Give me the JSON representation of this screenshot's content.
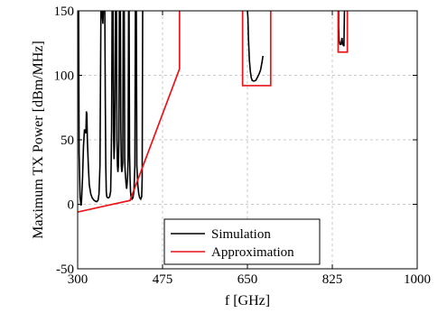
{
  "chart_data": {
    "type": "line",
    "xlabel": "f [GHz]",
    "ylabel": "Maximum TX Power [dBm/MHz]",
    "xlim": [
      300,
      1000
    ],
    "ylim": [
      -50,
      150
    ],
    "x_ticks": [
      300,
      475,
      650,
      825,
      1000
    ],
    "y_ticks": [
      -50,
      0,
      50,
      100,
      150
    ],
    "grid": "dashed",
    "legend_position": "bottom-center",
    "series": [
      {
        "name": "Simulation",
        "color": "#000000",
        "segments": [
          [
            [
              300,
              150
            ],
            [
              302,
              150
            ],
            [
              302,
              150
            ],
            [
              303,
              40
            ],
            [
              305,
              5
            ],
            [
              307,
              -1
            ],
            [
              308,
              3
            ],
            [
              310,
              20
            ],
            [
              312,
              45
            ],
            [
              314,
              58
            ],
            [
              317,
              55
            ],
            [
              318,
              72
            ],
            [
              319,
              70
            ],
            [
              320,
              50
            ],
            [
              322,
              30
            ],
            [
              324,
              15
            ],
            [
              327,
              8
            ],
            [
              330,
              5
            ],
            [
              334,
              3
            ],
            [
              339,
              2
            ],
            [
              342,
              3
            ],
            [
              344,
              8
            ],
            [
              346,
              30
            ],
            [
              348,
              150
            ],
            [
              350,
              150
            ],
            [
              352,
              140
            ],
            [
              353,
              150
            ],
            [
              356,
              150
            ],
            [
              357,
              80
            ],
            [
              358,
              30
            ],
            [
              359,
              10
            ],
            [
              360,
              6
            ],
            [
              362,
              5
            ],
            [
              364,
              5
            ],
            [
              366,
              6
            ],
            [
              368,
              10
            ],
            [
              369,
              30
            ],
            [
              370,
              60
            ],
            [
              371,
              150
            ],
            [
              373,
              150
            ],
            [
              374,
              55
            ],
            [
              375,
              35
            ],
            [
              376,
              45
            ],
            [
              377,
              80
            ],
            [
              378,
              150
            ],
            [
              380,
              150
            ],
            [
              381,
              50
            ],
            [
              382,
              30
            ],
            [
              383,
              25
            ],
            [
              384,
              30
            ],
            [
              385,
              50
            ],
            [
              386,
              150
            ],
            [
              388,
              150
            ],
            [
              389,
              60
            ],
            [
              390,
              30
            ],
            [
              391,
              25
            ],
            [
              392,
              28
            ],
            [
              393,
              32
            ],
            [
              394,
              150
            ],
            [
              396,
              150
            ],
            [
              397,
              35
            ],
            [
              398,
              25
            ],
            [
              400,
              15
            ],
            [
              401,
              12
            ],
            [
              402,
              16
            ],
            [
              403,
              22
            ],
            [
              404,
              35
            ],
            [
              405,
              150
            ],
            [
              406,
              150
            ],
            [
              407,
              40
            ],
            [
              408,
              20
            ],
            [
              409,
              10
            ],
            [
              410,
              6
            ],
            [
              412,
              4
            ],
            [
              414,
              5
            ],
            [
              416,
              10
            ],
            [
              418,
              30
            ],
            [
              419,
              150
            ],
            [
              420,
              150
            ],
            [
              421,
              150
            ],
            [
              422,
              30
            ],
            [
              424,
              15
            ],
            [
              426,
              8
            ],
            [
              428,
              5
            ],
            [
              430,
              4
            ],
            [
              432,
              6
            ],
            [
              433,
              20
            ],
            [
              434,
              150
            ]
          ],
          [
            [
              650,
              150
            ],
            [
              651,
              145
            ],
            [
              652,
              130
            ],
            [
              654,
              112
            ],
            [
              656,
              103
            ],
            [
              658,
              98
            ],
            [
              660,
              96
            ],
            [
              663,
              95.5
            ],
            [
              667,
              96
            ],
            [
              670,
              98
            ],
            [
              674,
              101
            ],
            [
              677,
              104
            ],
            [
              680,
              110
            ],
            [
              682,
              115
            ]
          ],
          [
            [
              837,
              150
            ],
            [
              838,
              150
            ],
            [
              838,
              137
            ],
            [
              839,
              127
            ],
            [
              841,
              124
            ],
            [
              843,
              124
            ],
            [
              845,
              129
            ],
            [
              846,
              125
            ],
            [
              848,
              123
            ],
            [
              849,
              123
            ],
            [
              850,
              150
            ]
          ]
        ]
      },
      {
        "name": "Approximation",
        "color": "#e8141a",
        "segments": [
          [
            [
              300,
              -6
            ],
            [
              408,
              3
            ],
            [
              510,
              105
            ],
            [
              510,
              150
            ]
          ],
          [
            [
              640,
              150
            ],
            [
              640,
              92
            ],
            [
              698,
              92
            ],
            [
              698,
              150
            ]
          ],
          [
            [
              837,
              150
            ],
            [
              837,
              118
            ],
            [
              856,
              118
            ],
            [
              856,
              150
            ]
          ]
        ]
      }
    ]
  }
}
